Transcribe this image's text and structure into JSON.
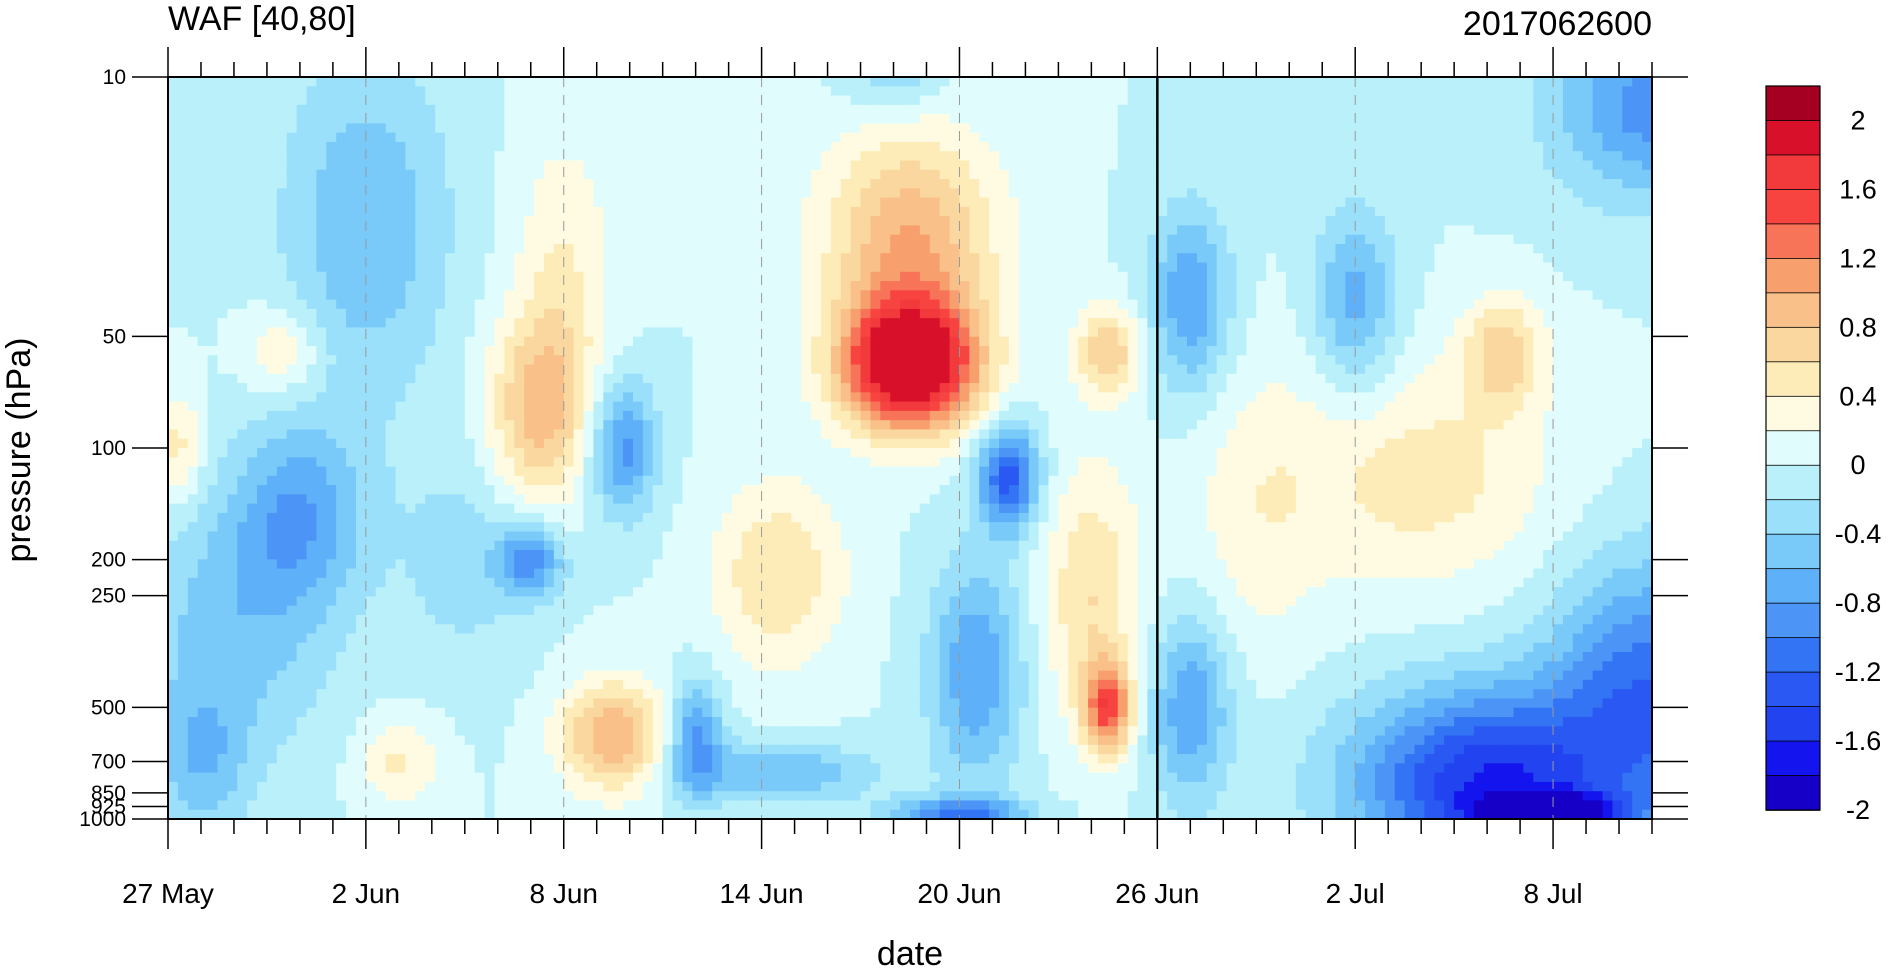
{
  "chart_data": {
    "type": "heatmap",
    "title": "WAF [40,80]",
    "title_right": "2017062600",
    "xlabel": "date",
    "ylabel": "pressure (hPa)",
    "x_ticks": [
      "27 May",
      "2 Jun",
      "8 Jun",
      "14 Jun",
      "20 Jun",
      "26 Jun",
      "2 Jul",
      "8 Jul"
    ],
    "x_range_days": [
      0,
      45
    ],
    "x_major_every_days": 6,
    "y_ticks": [
      10,
      50,
      100,
      200,
      250,
      500,
      700,
      850,
      925,
      1000
    ],
    "y_tick_labels": [
      "10",
      "50",
      "100",
      "200",
      "250",
      "500",
      "700",
      "850",
      "925",
      "1000"
    ],
    "y_scale": "log",
    "ylim": [
      1000,
      10
    ],
    "vertical_marker_date": "26 Jun",
    "colorbar": {
      "levels": [
        -2,
        -1.8,
        -1.6,
        -1.4,
        -1.2,
        -1.0,
        -0.8,
        -0.6,
        -0.4,
        -0.2,
        0,
        0.2,
        0.4,
        0.6,
        0.8,
        1.0,
        1.2,
        1.4,
        1.6,
        1.8,
        2
      ],
      "labels": [
        "2",
        "1.6",
        "1.2",
        "0.8",
        "0.4",
        "0",
        "-0.4",
        "-0.8",
        "-1.2",
        "-1.6",
        "-2"
      ],
      "colors": [
        "#1600c8",
        "#1414ee",
        "#2244f0",
        "#2a58f2",
        "#3274f4",
        "#4c94f6",
        "#5eb0f8",
        "#7acaf9",
        "#9ae0fa",
        "#b9f0fa",
        "#e0fcfd",
        "#fffbe2",
        "#fdecb8",
        "#fbd7a0",
        "#f9c08a",
        "#f7a06e",
        "#f77458",
        "#f84440",
        "#f23a3c",
        "#d8102a",
        "#a50021"
      ]
    },
    "blobs": [
      {
        "d": 2,
        "p": 300,
        "v": -0.5,
        "sd": 3,
        "sp": 0.35
      },
      {
        "d": 4,
        "p": 150,
        "v": -0.7,
        "sd": 2,
        "sp": 0.25
      },
      {
        "d": 6,
        "p": 25,
        "v": -0.6,
        "sd": 2.5,
        "sp": 0.45
      },
      {
        "d": 3.5,
        "p": 55,
        "v": 0.45,
        "sd": 1.2,
        "sp": 0.12
      },
      {
        "d": 0.3,
        "p": 100,
        "v": 0.5,
        "sd": 0.8,
        "sp": 0.15
      },
      {
        "d": 1,
        "p": 700,
        "v": -0.5,
        "sd": 1.5,
        "sp": 0.2
      },
      {
        "d": 7,
        "p": 700,
        "v": 0.45,
        "sd": 1.2,
        "sp": 0.12
      },
      {
        "d": 9,
        "p": 200,
        "v": -0.3,
        "sd": 2,
        "sp": 0.3
      },
      {
        "d": 11.2,
        "p": 80,
        "v": 0.85,
        "sd": 1.5,
        "sp": 0.25
      },
      {
        "d": 12,
        "p": 35,
        "v": 0.4,
        "sd": 1.5,
        "sp": 0.4
      },
      {
        "d": 11,
        "p": 200,
        "v": -0.9,
        "sd": 1.0,
        "sp": 0.1
      },
      {
        "d": 13.8,
        "p": 100,
        "v": -0.9,
        "sd": 1.0,
        "sp": 0.18
      },
      {
        "d": 13.5,
        "p": 600,
        "v": 1.0,
        "sd": 1.6,
        "sp": 0.15
      },
      {
        "d": 16,
        "p": 600,
        "v": -0.9,
        "sd": 0.8,
        "sp": 0.15
      },
      {
        "d": 18.5,
        "p": 750,
        "v": -0.6,
        "sd": 3,
        "sp": 0.08
      },
      {
        "d": 18.5,
        "p": 220,
        "v": 0.6,
        "sd": 2,
        "sp": 0.25
      },
      {
        "d": 22.5,
        "p": 60,
        "v": 2.4,
        "sd": 2.0,
        "sp": 0.17
      },
      {
        "d": 22.5,
        "p": 28,
        "v": 1.0,
        "sd": 2.6,
        "sp": 0.3
      },
      {
        "d": 22,
        "p": 10,
        "v": -0.4,
        "sd": 1.5,
        "sp": 0.1
      },
      {
        "d": 25.5,
        "p": 120,
        "v": -1.3,
        "sd": 0.9,
        "sp": 0.14
      },
      {
        "d": 24.5,
        "p": 400,
        "v": -0.8,
        "sd": 1.4,
        "sp": 0.3
      },
      {
        "d": 24,
        "p": 960,
        "v": -1.0,
        "sd": 2,
        "sp": 0.04
      },
      {
        "d": 28.5,
        "p": 55,
        "v": 0.8,
        "sd": 1.0,
        "sp": 0.12
      },
      {
        "d": 28.5,
        "p": 500,
        "v": 1.4,
        "sd": 0.7,
        "sp": 0.12
      },
      {
        "d": 28,
        "p": 250,
        "v": 0.6,
        "sd": 1.5,
        "sp": 0.35
      },
      {
        "d": 31,
        "p": 40,
        "v": -0.8,
        "sd": 1.2,
        "sp": 0.25
      },
      {
        "d": 31,
        "p": 500,
        "v": -0.8,
        "sd": 1.2,
        "sp": 0.25
      },
      {
        "d": 36,
        "p": 40,
        "v": -0.7,
        "sd": 1.2,
        "sp": 0.25
      },
      {
        "d": 38,
        "p": 120,
        "v": 0.5,
        "sd": 4,
        "sp": 0.3
      },
      {
        "d": 40.5,
        "p": 55,
        "v": 0.7,
        "sd": 1.2,
        "sp": 0.15
      },
      {
        "d": 40,
        "p": 800,
        "v": -1.6,
        "sd": 4,
        "sp": 0.25
      },
      {
        "d": 45,
        "p": 12,
        "v": -0.9,
        "sd": 3,
        "sp": 0.25
      },
      {
        "d": 45,
        "p": 450,
        "v": -1.1,
        "sd": 3,
        "sp": 0.35
      },
      {
        "d": 42,
        "p": 960,
        "v": -1.5,
        "sd": 2,
        "sp": 0.05
      },
      {
        "d": 33,
        "p": 150,
        "v": 0.3,
        "sd": 2,
        "sp": 0.4
      }
    ]
  }
}
